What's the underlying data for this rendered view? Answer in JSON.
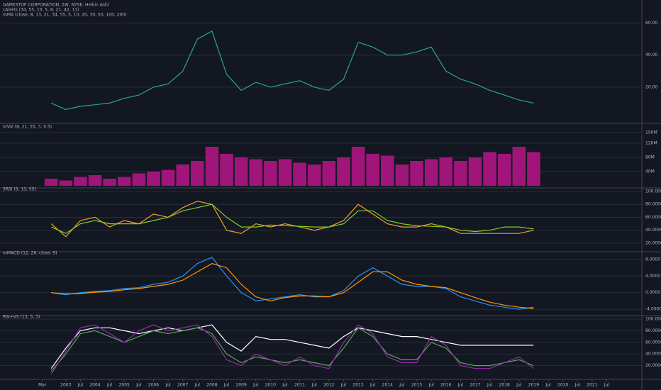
{
  "chart_data": [
    {
      "type": "line",
      "title": "GAMESTOP CORPORATION, 2W, NYSE, Heikin Ashi",
      "indicators": [
        "cAlerts (34, 55, 10, 5, 8, 21, 42, 11)",
        "mMA (close, 8, 13, 21, 34, 55, 5, 10, 20, 30, 50, 100, 200)"
      ],
      "xlim": [
        2000.75,
        2022.7
      ],
      "ylim": [
        0,
        70
      ],
      "yticks": [
        {
          "value": 20,
          "label": "20.00"
        },
        {
          "value": 40,
          "label": "40.00"
        },
        {
          "value": 60,
          "label": "60.00"
        }
      ],
      "grid": true,
      "x": [
        2002.5,
        2003,
        2003.5,
        2004,
        2004.5,
        2005,
        2005.5,
        2006,
        2006.5,
        2007,
        2007.5,
        2008,
        2008.5,
        2009,
        2009.5,
        2010,
        2010.5,
        2011,
        2011.5,
        2012,
        2012.5,
        2013,
        2013.5,
        2014,
        2014.5,
        2015,
        2015.5,
        2016,
        2016.5,
        2017,
        2017.5,
        2018,
        2018.5,
        2019
      ],
      "series": [
        {
          "color": "#26a69a",
          "values": [
            10,
            6,
            8,
            9,
            10,
            13,
            15,
            20,
            22,
            30,
            50,
            55,
            28,
            18,
            23,
            20,
            22,
            24,
            20,
            18,
            25,
            48,
            45,
            40,
            40,
            42,
            45,
            30,
            25,
            22,
            18,
            15,
            12,
            10
          ]
        }
      ]
    },
    {
      "type": "bar",
      "title": "mVol (8, 21, 55, 3, 0.5)",
      "xlim": [
        2000.75,
        2022.7
      ],
      "ylim": [
        0,
        160
      ],
      "yticks": [
        {
          "value": 40,
          "label": "40M"
        },
        {
          "value": 80,
          "label": "80M"
        },
        {
          "value": 120,
          "label": "120M"
        },
        {
          "value": 150,
          "label": "150M"
        }
      ],
      "grid": true,
      "x": [
        2002.5,
        2003,
        2003.5,
        2004,
        2004.5,
        2005,
        2005.5,
        2006,
        2006.5,
        2007,
        2007.5,
        2008,
        2008.5,
        2009,
        2009.5,
        2010,
        2010.5,
        2011,
        2011.5,
        2012,
        2012.5,
        2013,
        2013.5,
        2014,
        2014.5,
        2015,
        2015.5,
        2016,
        2016.5,
        2017,
        2017.5,
        2018,
        2018.5,
        2019
      ],
      "series": [
        {
          "color": "#a0157a",
          "values": [
            20,
            15,
            25,
            30,
            20,
            25,
            35,
            40,
            45,
            60,
            70,
            110,
            90,
            80,
            75,
            70,
            75,
            65,
            60,
            70,
            80,
            110,
            90,
            85,
            60,
            70,
            75,
            80,
            70,
            80,
            95,
            90,
            110,
            95
          ]
        }
      ]
    },
    {
      "type": "line",
      "title": "3RSI (5, 13, 55)",
      "xlim": [
        2000.75,
        2022.7
      ],
      "ylim": [
        10,
        100
      ],
      "yticks": [
        {
          "value": 20,
          "label": "20.0000"
        },
        {
          "value": 40,
          "label": "40.0000"
        },
        {
          "value": 60,
          "label": "60.0000"
        },
        {
          "value": 80,
          "label": "80.0000"
        },
        {
          "value": 100,
          "label": "100.0000"
        }
      ],
      "grid": true,
      "x": [
        2002.5,
        2003,
        2003.5,
        2004,
        2004.5,
        2005,
        2005.5,
        2006,
        2006.5,
        2007,
        2007.5,
        2008,
        2008.5,
        2009,
        2009.5,
        2010,
        2010.5,
        2011,
        2011.5,
        2012,
        2012.5,
        2013,
        2013.5,
        2014,
        2014.5,
        2015,
        2015.5,
        2016,
        2016.5,
        2017,
        2017.5,
        2018,
        2018.5,
        2019
      ],
      "series": [
        {
          "color": "#f0a030",
          "values": [
            50,
            30,
            55,
            60,
            45,
            55,
            50,
            65,
            60,
            75,
            85,
            80,
            40,
            35,
            50,
            45,
            50,
            45,
            40,
            45,
            55,
            80,
            65,
            50,
            45,
            45,
            50,
            45,
            35,
            35,
            35,
            35,
            35,
            40
          ]
        },
        {
          "color": "#7ed321",
          "values": [
            45,
            35,
            50,
            55,
            50,
            50,
            50,
            55,
            60,
            70,
            75,
            80,
            60,
            45,
            45,
            48,
            47,
            46,
            45,
            45,
            50,
            70,
            70,
            55,
            50,
            47,
            46,
            45,
            40,
            38,
            40,
            45,
            45,
            42
          ]
        }
      ]
    },
    {
      "type": "line",
      "title": "mMACD (12, 26, close, 9)",
      "xlim": [
        2000.75,
        2022.7
      ],
      "ylim": [
        -5,
        9
      ],
      "yticks": [
        {
          "value": -4,
          "label": "-4.0000"
        },
        {
          "value": 0,
          "label": "0.0000"
        },
        {
          "value": 4,
          "label": "4.0000"
        },
        {
          "value": 8,
          "label": "8.0000"
        }
      ],
      "grid": true,
      "x": [
        2002.5,
        2003,
        2003.5,
        2004,
        2004.5,
        2005,
        2005.5,
        2006,
        2006.5,
        2007,
        2007.5,
        2008,
        2008.5,
        2009,
        2009.5,
        2010,
        2010.5,
        2011,
        2011.5,
        2012,
        2012.5,
        2013,
        2013.5,
        2014,
        2014.5,
        2015,
        2015.5,
        2016,
        2016.5,
        2017,
        2017.5,
        2018,
        2018.5,
        2019
      ],
      "series": [
        {
          "color": "#2196f3",
          "values": [
            0,
            -0.5,
            0,
            0.3,
            0.5,
            1,
            1.2,
            2,
            2.5,
            4,
            7,
            8.5,
            4,
            0,
            -2,
            -1.5,
            -1,
            -0.5,
            -1,
            -1,
            0.5,
            4,
            6,
            4,
            2,
            1.5,
            1.5,
            1,
            -1,
            -2,
            -3,
            -3.5,
            -4,
            -3.5
          ]
        },
        {
          "color": "#ff9800",
          "values": [
            0,
            -0.3,
            -0.2,
            0.1,
            0.3,
            0.7,
            1,
            1.5,
            2,
            3,
            5,
            7,
            6,
            2,
            -1,
            -2,
            -1.2,
            -0.8,
            -0.8,
            -1,
            0,
            2.5,
            5,
            5,
            3,
            2,
            1.5,
            1.2,
            0,
            -1.2,
            -2.3,
            -3,
            -3.5,
            -3.8
          ]
        }
      ]
    },
    {
      "type": "line",
      "title": "RSI+VS (13, 3, 3)",
      "xlim": [
        2000.75,
        2022.7
      ],
      "ylim": [
        0,
        100
      ],
      "yticks": [
        {
          "value": 20,
          "label": "20.0000"
        },
        {
          "value": 40,
          "label": "40.0000"
        },
        {
          "value": 60,
          "label": "60.0000"
        },
        {
          "value": 80,
          "label": "80.0000"
        },
        {
          "value": 100,
          "label": "100.0000"
        }
      ],
      "grid": true,
      "xticks": [
        {
          "value": 2002.2,
          "label": "Mar"
        },
        {
          "value": 2003,
          "label": "2003"
        },
        {
          "value": 2003.5,
          "label": "Jul"
        },
        {
          "value": 2004,
          "label": "2004"
        },
        {
          "value": 2004.5,
          "label": "Jul"
        },
        {
          "value": 2005,
          "label": "2005"
        },
        {
          "value": 2005.5,
          "label": "Jul"
        },
        {
          "value": 2006,
          "label": "2006"
        },
        {
          "value": 2006.5,
          "label": "Jul"
        },
        {
          "value": 2007,
          "label": "2007"
        },
        {
          "value": 2007.5,
          "label": "Jul"
        },
        {
          "value": 2008,
          "label": "2008"
        },
        {
          "value": 2008.5,
          "label": "Jul"
        },
        {
          "value": 2009,
          "label": "2009"
        },
        {
          "value": 2009.5,
          "label": "Jul"
        },
        {
          "value": 2010,
          "label": "2010"
        },
        {
          "value": 2010.5,
          "label": "Jul"
        },
        {
          "value": 2011,
          "label": "2011"
        },
        {
          "value": 2011.5,
          "label": "Jul"
        },
        {
          "value": 2012,
          "label": "2012"
        },
        {
          "value": 2012.5,
          "label": "Jul"
        },
        {
          "value": 2013,
          "label": "2013"
        },
        {
          "value": 2013.5,
          "label": "Jul"
        },
        {
          "value": 2014,
          "label": "2014"
        },
        {
          "value": 2014.5,
          "label": "Jul"
        },
        {
          "value": 2015,
          "label": "2015"
        },
        {
          "value": 2015.5,
          "label": "Jul"
        },
        {
          "value": 2016,
          "label": "2016"
        },
        {
          "value": 2016.5,
          "label": "Jul"
        },
        {
          "value": 2017,
          "label": "2017"
        },
        {
          "value": 2017.5,
          "label": "Jul"
        },
        {
          "value": 2018,
          "label": "2018"
        },
        {
          "value": 2018.5,
          "label": "Jul"
        },
        {
          "value": 2019,
          "label": "2019"
        },
        {
          "value": 2019.5,
          "label": "Jul"
        },
        {
          "value": 2020,
          "label": "2020"
        },
        {
          "value": 2020.5,
          "label": "Jul"
        },
        {
          "value": 2021,
          "label": "2021"
        },
        {
          "value": 2021.5,
          "label": "Jul"
        }
      ],
      "x": [
        2002.5,
        2003,
        2003.5,
        2004,
        2004.5,
        2005,
        2005.5,
        2006,
        2006.5,
        2007,
        2007.5,
        2008,
        2008.5,
        2009,
        2009.5,
        2010,
        2010.5,
        2011,
        2011.5,
        2012,
        2012.5,
        2013,
        2013.5,
        2014,
        2014.5,
        2015,
        2015.5,
        2016,
        2016.5,
        2017,
        2017.5,
        2018,
        2018.5,
        2019
      ],
      "series": [
        {
          "color": "#ffffff",
          "values": [
            15,
            50,
            80,
            85,
            85,
            80,
            75,
            80,
            85,
            80,
            85,
            90,
            60,
            45,
            70,
            65,
            65,
            60,
            55,
            50,
            70,
            85,
            80,
            75,
            70,
            70,
            65,
            60,
            55,
            55,
            55,
            55,
            55,
            55
          ]
        },
        {
          "color": "#4caf50",
          "values": [
            10,
            40,
            75,
            80,
            70,
            60,
            70,
            80,
            75,
            80,
            85,
            75,
            40,
            25,
            35,
            30,
            25,
            30,
            25,
            20,
            50,
            85,
            70,
            40,
            30,
            30,
            60,
            50,
            25,
            20,
            20,
            25,
            30,
            20
          ]
        },
        {
          "color": "#9c27b0",
          "values": [
            5,
            45,
            85,
            90,
            75,
            60,
            80,
            90,
            80,
            85,
            90,
            70,
            30,
            20,
            40,
            30,
            20,
            35,
            20,
            15,
            60,
            90,
            75,
            35,
            25,
            25,
            70,
            55,
            20,
            15,
            15,
            25,
            35,
            15
          ]
        }
      ]
    }
  ]
}
